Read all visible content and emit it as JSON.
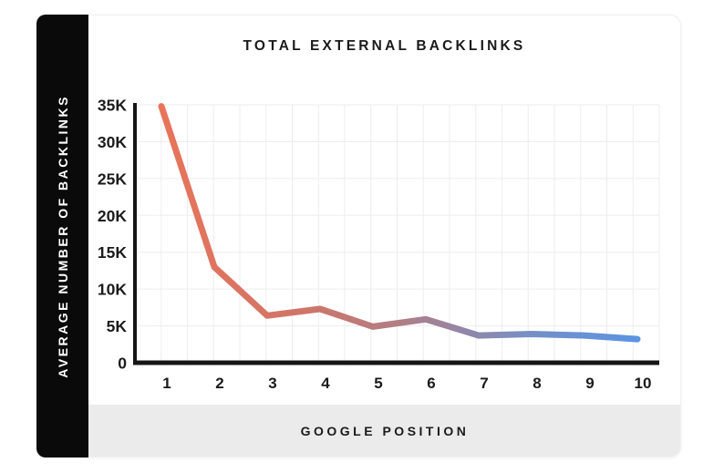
{
  "figure": {
    "title": "TOTAL EXTERNAL BACKLINKS",
    "y_axis_title": "AVERAGE NUMBER OF BACKLINKS",
    "x_axis_title": "GOOGLE POSITION"
  },
  "chart_data": {
    "type": "line",
    "title": "TOTAL EXTERNAL BACKLINKS",
    "xlabel": "GOOGLE POSITION",
    "ylabel": "AVERAGE NUMBER OF BACKLINKS",
    "x": [
      1,
      2,
      3,
      4,
      5,
      6,
      7,
      8,
      9,
      10
    ],
    "x_tick_labels": [
      "1",
      "2",
      "3",
      "4",
      "5",
      "6",
      "7",
      "8",
      "9",
      "10"
    ],
    "values": [
      34800,
      13000,
      6400,
      7300,
      4900,
      5900,
      3700,
      3900,
      3700,
      3200
    ],
    "y_tick_labels": [
      "0",
      "5K",
      "10K",
      "15K",
      "20K",
      "25K",
      "30K",
      "35K"
    ],
    "y_tick_values": [
      0,
      5000,
      10000,
      15000,
      20000,
      25000,
      30000,
      35000
    ],
    "ylim": [
      0,
      35000
    ],
    "grid": true,
    "legend": false,
    "line_gradient_stops": [
      {
        "offset": 0.0,
        "color": "#E8745A"
      },
      {
        "offset": 0.3,
        "color": "#CF7569"
      },
      {
        "offset": 0.5,
        "color": "#B27E85"
      },
      {
        "offset": 0.65,
        "color": "#8F87AB"
      },
      {
        "offset": 0.8,
        "color": "#7290CB"
      },
      {
        "offset": 1.0,
        "color": "#5B94E2"
      }
    ]
  },
  "colors": {
    "sidebar_bg": "#0a0a0a",
    "sidebar_text": "#ffffff",
    "card_bg": "#ffffff",
    "card_border": "#f0f0f0",
    "footer_bg": "#ebebeb",
    "grid_line": "#ededed",
    "axis_line": "#161616",
    "text": "#1b1b1b",
    "line_start": "#E8745A",
    "line_end": "#5B94E2"
  }
}
